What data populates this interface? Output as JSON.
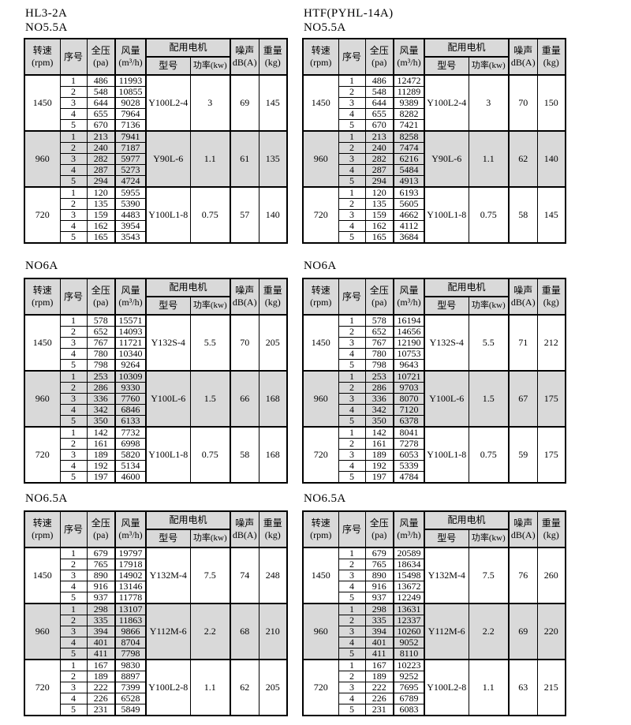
{
  "colors": {
    "header_bg": "#d9d9d9",
    "shaded_band_bg": "#d9d9d9",
    "border": "#000000",
    "page_bg": "#ffffff"
  },
  "header_labels": {
    "speed_top": "转速",
    "speed_bottom": "(rpm)",
    "index": "序号",
    "pressure_top": "全压",
    "pressure_bottom": "(pa)",
    "airflow_top": "风量",
    "airflow_bottom": "(m³/h)",
    "motor_group": "配用电机",
    "motor_model": "型号",
    "motor_power": "功率(kw)",
    "noise_top": "噪声",
    "noise_bottom": "dB(A)",
    "weight_top": "重量",
    "weight_bottom": "(kg)"
  },
  "tables": [
    {
      "title_lines": [
        "HL3-2A",
        "NO5.5A"
      ],
      "groups": [
        {
          "rpm": "1450",
          "shaded": false,
          "motor_model": "Y100L2-4",
          "power": "3",
          "noise": "69",
          "weight": "145",
          "rows": [
            [
              1,
              486,
              11993
            ],
            [
              2,
              548,
              10855
            ],
            [
              3,
              644,
              9028
            ],
            [
              4,
              655,
              7964
            ],
            [
              5,
              670,
              7136
            ]
          ]
        },
        {
          "rpm": "960",
          "shaded": true,
          "motor_model": "Y90L-6",
          "power": "1.1",
          "noise": "61",
          "weight": "135",
          "rows": [
            [
              1,
              213,
              7941
            ],
            [
              2,
              240,
              7187
            ],
            [
              3,
              282,
              5977
            ],
            [
              4,
              287,
              5273
            ],
            [
              5,
              294,
              4724
            ]
          ]
        },
        {
          "rpm": "720",
          "shaded": false,
          "motor_model": "Y100L1-8",
          "power": "0.75",
          "noise": "57",
          "weight": "140",
          "rows": [
            [
              1,
              120,
              5955
            ],
            [
              2,
              135,
              5390
            ],
            [
              3,
              159,
              4483
            ],
            [
              4,
              162,
              3954
            ],
            [
              5,
              165,
              3543
            ]
          ]
        }
      ]
    },
    {
      "title_lines": [
        "HTF(PYHL-14A)",
        "NO5.5A"
      ],
      "groups": [
        {
          "rpm": "1450",
          "shaded": false,
          "motor_model": "Y100L2-4",
          "power": "3",
          "noise": "70",
          "weight": "150",
          "rows": [
            [
              1,
              486,
              12472
            ],
            [
              2,
              548,
              11289
            ],
            [
              3,
              644,
              9389
            ],
            [
              4,
              655,
              8282
            ],
            [
              5,
              670,
              7421
            ]
          ]
        },
        {
          "rpm": "960",
          "shaded": true,
          "motor_model": "Y90L-6",
          "power": "1.1",
          "noise": "62",
          "weight": "140",
          "rows": [
            [
              1,
              213,
              8258
            ],
            [
              2,
              240,
              7474
            ],
            [
              3,
              282,
              6216
            ],
            [
              4,
              287,
              5484
            ],
            [
              5,
              294,
              4913
            ]
          ]
        },
        {
          "rpm": "720",
          "shaded": false,
          "motor_model": "Y100L1-8",
          "power": "0.75",
          "noise": "58",
          "weight": "145",
          "rows": [
            [
              1,
              120,
              6193
            ],
            [
              2,
              135,
              5605
            ],
            [
              3,
              159,
              4662
            ],
            [
              4,
              162,
              4112
            ],
            [
              5,
              165,
              3684
            ]
          ]
        }
      ]
    },
    {
      "title_lines": [
        "NO6A"
      ],
      "groups": [
        {
          "rpm": "1450",
          "shaded": false,
          "motor_model": "Y132S-4",
          "power": "5.5",
          "noise": "70",
          "weight": "205",
          "rows": [
            [
              1,
              578,
              15571
            ],
            [
              2,
              652,
              14093
            ],
            [
              3,
              767,
              11721
            ],
            [
              4,
              780,
              10340
            ],
            [
              5,
              798,
              9264
            ]
          ]
        },
        {
          "rpm": "960",
          "shaded": true,
          "motor_model": "Y100L-6",
          "power": "1.5",
          "noise": "66",
          "weight": "168",
          "rows": [
            [
              1,
              253,
              10309
            ],
            [
              2,
              286,
              9330
            ],
            [
              3,
              336,
              7760
            ],
            [
              4,
              342,
              6846
            ],
            [
              5,
              350,
              6133
            ]
          ]
        },
        {
          "rpm": "720",
          "shaded": false,
          "motor_model": "Y100L1-8",
          "power": "0.75",
          "noise": "58",
          "weight": "168",
          "rows": [
            [
              1,
              142,
              7732
            ],
            [
              2,
              161,
              6998
            ],
            [
              3,
              189,
              5820
            ],
            [
              4,
              192,
              5134
            ],
            [
              5,
              197,
              4600
            ]
          ]
        }
      ]
    },
    {
      "title_lines": [
        "NO6A"
      ],
      "groups": [
        {
          "rpm": "1450",
          "shaded": false,
          "motor_model": "Y132S-4",
          "power": "5.5",
          "noise": "71",
          "weight": "212",
          "rows": [
            [
              1,
              578,
              16194
            ],
            [
              2,
              652,
              14656
            ],
            [
              3,
              767,
              12190
            ],
            [
              4,
              780,
              10753
            ],
            [
              5,
              798,
              9643
            ]
          ]
        },
        {
          "rpm": "960",
          "shaded": true,
          "motor_model": "Y100L-6",
          "power": "1.5",
          "noise": "67",
          "weight": "175",
          "rows": [
            [
              1,
              253,
              10721
            ],
            [
              2,
              286,
              9703
            ],
            [
              3,
              336,
              8070
            ],
            [
              4,
              342,
              7120
            ],
            [
              5,
              350,
              6378
            ]
          ]
        },
        {
          "rpm": "720",
          "shaded": false,
          "motor_model": "Y100L1-8",
          "power": "0.75",
          "noise": "59",
          "weight": "175",
          "rows": [
            [
              1,
              142,
              8041
            ],
            [
              2,
              161,
              7278
            ],
            [
              3,
              189,
              6053
            ],
            [
              4,
              192,
              5339
            ],
            [
              5,
              197,
              4784
            ]
          ]
        }
      ]
    },
    {
      "title_lines": [
        "NO6.5A"
      ],
      "groups": [
        {
          "rpm": "1450",
          "shaded": false,
          "motor_model": "Y132M-4",
          "power": "7.5",
          "noise": "74",
          "weight": "248",
          "rows": [
            [
              1,
              679,
              19797
            ],
            [
              2,
              765,
              17918
            ],
            [
              3,
              890,
              14902
            ],
            [
              4,
              916,
              13146
            ],
            [
              5,
              937,
              11778
            ]
          ]
        },
        {
          "rpm": "960",
          "shaded": true,
          "motor_model": "Y112M-6",
          "power": "2.2",
          "noise": "68",
          "weight": "210",
          "rows": [
            [
              1,
              298,
              13107
            ],
            [
              2,
              335,
              11863
            ],
            [
              3,
              394,
              9866
            ],
            [
              4,
              401,
              8704
            ],
            [
              5,
              411,
              7798
            ]
          ]
        },
        {
          "rpm": "720",
          "shaded": false,
          "motor_model": "Y100L2-8",
          "power": "1.1",
          "noise": "62",
          "weight": "205",
          "rows": [
            [
              1,
              167,
              9830
            ],
            [
              2,
              189,
              8897
            ],
            [
              3,
              222,
              7399
            ],
            [
              4,
              226,
              6528
            ],
            [
              5,
              231,
              5849
            ]
          ]
        }
      ]
    },
    {
      "title_lines": [
        "NO6.5A"
      ],
      "groups": [
        {
          "rpm": "1450",
          "shaded": false,
          "motor_model": "Y132M-4",
          "power": "7.5",
          "noise": "76",
          "weight": "260",
          "rows": [
            [
              1,
              679,
              20589
            ],
            [
              2,
              765,
              18634
            ],
            [
              3,
              890,
              15498
            ],
            [
              4,
              916,
              13672
            ],
            [
              5,
              937,
              12249
            ]
          ]
        },
        {
          "rpm": "960",
          "shaded": true,
          "motor_model": "Y112M-6",
          "power": "2.2",
          "noise": "69",
          "weight": "220",
          "rows": [
            [
              1,
              298,
              13631
            ],
            [
              2,
              335,
              12337
            ],
            [
              3,
              394,
              10260
            ],
            [
              4,
              401,
              9052
            ],
            [
              5,
              411,
              8110
            ]
          ]
        },
        {
          "rpm": "720",
          "shaded": false,
          "motor_model": "Y100L2-8",
          "power": "1.1",
          "noise": "63",
          "weight": "215",
          "rows": [
            [
              1,
              167,
              10223
            ],
            [
              2,
              189,
              9252
            ],
            [
              3,
              222,
              7695
            ],
            [
              4,
              226,
              6789
            ],
            [
              5,
              231,
              6083
            ]
          ]
        }
      ]
    }
  ]
}
